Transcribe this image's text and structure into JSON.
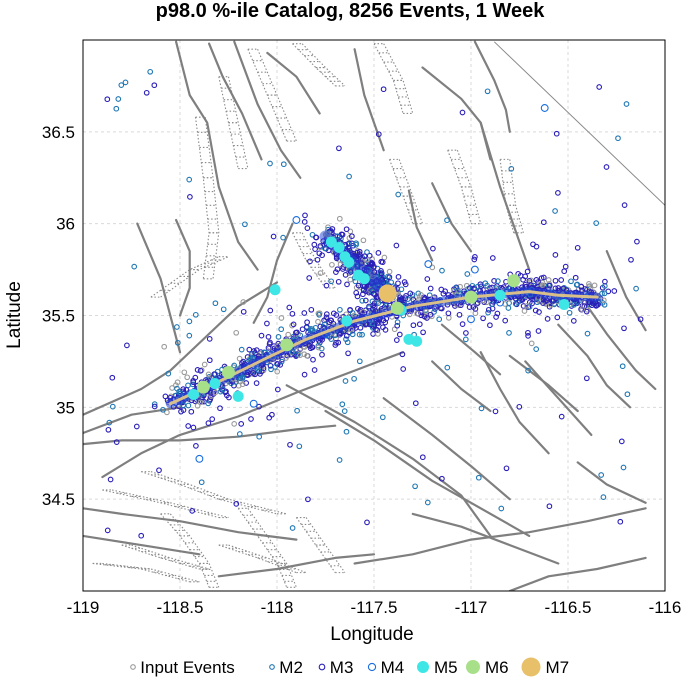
{
  "colors": {
    "input": "#9a9a9a",
    "m2": "#1f77b4",
    "m3": "#2a1fb8",
    "m4": "#1a6fe0",
    "m5": "#3ee6e6",
    "m6": "#a8e08a",
    "m7": "#e8c06a",
    "fault": "#7f7f7f"
  },
  "chart_data": {
    "type": "scatter",
    "title": "p98.0 %-ile Catalog, 8256 Events, 1 Week",
    "xlabel": "Longitude",
    "ylabel": "Latitude",
    "xlim": [
      -119,
      -116
    ],
    "ylim": [
      34,
      37
    ],
    "xticks": [
      -119,
      -118.5,
      -118,
      -117.5,
      -117,
      -116.5,
      -116
    ],
    "xtick_labels": [
      "-119",
      "-118.5",
      "-118",
      "-117.5",
      "-117",
      "-116.5",
      "-116"
    ],
    "yticks": [
      34.5,
      35,
      35.5,
      36,
      36.5
    ],
    "ytick_labels": [
      "34.5",
      "35",
      "35.5",
      "36",
      "36.5"
    ],
    "grid": true,
    "legend_position": "bottom",
    "legend": [
      {
        "label": "Input Events",
        "key": "input"
      },
      {
        "label": "M2",
        "key": "m2"
      },
      {
        "label": "M3",
        "key": "m3"
      },
      {
        "label": "M4",
        "key": "m4"
      },
      {
        "label": "M5",
        "key": "m5"
      },
      {
        "label": "M6",
        "key": "m6"
      },
      {
        "label": "M7",
        "key": "m7"
      }
    ],
    "trend_line": [
      [
        -118.55,
        35.02
      ],
      [
        -118.3,
        35.14
      ],
      [
        -118.05,
        35.27
      ],
      [
        -117.85,
        35.37
      ],
      [
        -117.6,
        35.47
      ],
      [
        -117.3,
        35.55
      ],
      [
        -117.0,
        35.6
      ],
      [
        -116.7,
        35.63
      ],
      [
        -116.55,
        35.61
      ],
      [
        -116.35,
        35.6
      ]
    ],
    "north_branch": [
      [
        -117.75,
        35.93
      ],
      [
        -117.62,
        35.8
      ],
      [
        -117.5,
        35.69
      ],
      [
        -117.42,
        35.61
      ]
    ],
    "m5_events": [
      [
        -117.72,
        35.9
      ],
      [
        -117.68,
        35.87
      ],
      [
        -117.65,
        35.82
      ],
      [
        -117.63,
        35.79
      ],
      [
        -117.58,
        35.72
      ],
      [
        -117.55,
        35.7
      ],
      [
        -118.01,
        35.64
      ],
      [
        -117.64,
        35.47
      ],
      [
        -117.36,
        35.53
      ],
      [
        -117.32,
        35.37
      ],
      [
        -117.28,
        35.36
      ],
      [
        -116.52,
        35.56
      ],
      [
        -116.85,
        35.61
      ],
      [
        -118.43,
        35.07
      ],
      [
        -118.2,
        35.06
      ],
      [
        -118.32,
        35.13
      ]
    ],
    "m6_events": [
      [
        -116.78,
        35.69
      ],
      [
        -117.0,
        35.6
      ],
      [
        -117.38,
        35.54
      ],
      [
        -117.95,
        35.34
      ],
      [
        -118.25,
        35.19
      ],
      [
        -118.38,
        35.11
      ]
    ],
    "m7_events": [
      [
        -117.43,
        35.62
      ]
    ],
    "m4_events": [
      [
        -117.9,
        36.02
      ],
      [
        -116.62,
        36.63
      ],
      [
        -117.22,
        35.78
      ],
      [
        -118.4,
        34.72
      ],
      [
        -116.85,
        35.57
      ],
      [
        -117.0,
        35.48
      ],
      [
        -118.12,
        35.02
      ],
      [
        -117.75,
        35.4
      ],
      [
        -116.98,
        35.75
      ]
    ]
  },
  "faults": {
    "main": [
      [
        [
          -118.52,
          36.99
        ],
        [
          -118.45,
          36.7
        ],
        [
          -118.36,
          36.55
        ],
        [
          -118.3,
          36.2
        ],
        [
          -118.2,
          35.9
        ],
        [
          -118.1,
          35.75
        ]
      ],
      [
        [
          -118.35,
          36.98
        ],
        [
          -118.28,
          36.8
        ],
        [
          -118.18,
          36.6
        ],
        [
          -118.08,
          36.35
        ]
      ],
      [
        [
          -118.22,
          36.99
        ],
        [
          -118.1,
          36.65
        ],
        [
          -117.98,
          36.4
        ],
        [
          -117.88,
          36.25
        ]
      ],
      [
        [
          -118.05,
          36.93
        ],
        [
          -117.9,
          36.8
        ],
        [
          -117.78,
          36.6
        ]
      ],
      [
        [
          -117.6,
          36.95
        ],
        [
          -117.55,
          36.7
        ],
        [
          -117.5,
          36.55
        ],
        [
          -117.45,
          36.4
        ]
      ],
      [
        [
          -117.25,
          36.85
        ],
        [
          -117.05,
          36.68
        ],
        [
          -116.95,
          36.55
        ],
        [
          -116.9,
          36.35
        ]
      ],
      [
        [
          -116.98,
          36.99
        ],
        [
          -116.88,
          36.78
        ],
        [
          -116.82,
          36.62
        ],
        [
          -116.8,
          36.5
        ]
      ],
      [
        [
          -116.95,
          36.55
        ],
        [
          -116.85,
          36.2
        ],
        [
          -116.75,
          35.9
        ],
        [
          -116.7,
          35.75
        ]
      ],
      [
        [
          -117.32,
          36.18
        ],
        [
          -117.28,
          35.98
        ],
        [
          -117.2,
          35.8
        ]
      ],
      [
        [
          -117.2,
          36.22
        ],
        [
          -117.1,
          36.0
        ],
        [
          -117.0,
          35.85
        ]
      ],
      [
        [
          -118.52,
          36.02
        ],
        [
          -118.45,
          35.85
        ],
        [
          -118.45,
          35.65
        ],
        [
          -118.5,
          35.5
        ]
      ],
      [
        [
          -118.72,
          36.0
        ],
        [
          -118.6,
          35.7
        ],
        [
          -118.55,
          35.5
        ],
        [
          -118.5,
          35.3
        ]
      ],
      [
        [
          -118.12,
          35.46
        ],
        [
          -118.05,
          35.6
        ],
        [
          -118.0,
          35.8
        ],
        [
          -117.92,
          36.0
        ]
      ],
      [
        [
          -119.0,
          34.96
        ],
        [
          -118.7,
          35.1
        ],
        [
          -118.55,
          35.2
        ],
        [
          -118.4,
          35.35
        ],
        [
          -118.2,
          35.55
        ],
        [
          -118.0,
          35.68
        ]
      ],
      [
        [
          -119.0,
          34.86
        ],
        [
          -118.75,
          34.96
        ],
        [
          -118.5,
          35.0
        ]
      ],
      [
        [
          -118.9,
          34.62
        ],
        [
          -118.7,
          34.75
        ],
        [
          -118.5,
          34.85
        ],
        [
          -118.2,
          34.95
        ],
        [
          -117.9,
          35.08
        ],
        [
          -117.6,
          35.2
        ],
        [
          -117.35,
          35.3
        ]
      ],
      [
        [
          -119.0,
          34.8
        ],
        [
          -118.8,
          34.82
        ],
        [
          -118.5,
          34.82
        ],
        [
          -118.2,
          34.84
        ],
        [
          -117.9,
          34.88
        ],
        [
          -117.7,
          34.9
        ]
      ],
      [
        [
          -117.75,
          34.98
        ],
        [
          -117.5,
          34.82
        ],
        [
          -117.2,
          34.6
        ],
        [
          -117.0,
          34.48
        ],
        [
          -116.7,
          34.3
        ]
      ],
      [
        [
          -117.95,
          35.12
        ],
        [
          -117.6,
          34.92
        ],
        [
          -117.3,
          34.72
        ],
        [
          -117.05,
          34.52
        ],
        [
          -116.9,
          34.3
        ]
      ],
      [
        [
          -117.45,
          35.05
        ],
        [
          -117.2,
          34.85
        ],
        [
          -117.0,
          34.68
        ],
        [
          -116.8,
          34.5
        ]
      ],
      [
        [
          -116.95,
          35.3
        ],
        [
          -116.85,
          35.1
        ],
        [
          -116.75,
          34.92
        ],
        [
          -116.6,
          34.75
        ]
      ],
      [
        [
          -116.8,
          35.28
        ],
        [
          -116.6,
          35.12
        ],
        [
          -116.45,
          34.98
        ]
      ],
      [
        [
          -116.55,
          35.45
        ],
        [
          -116.4,
          35.28
        ],
        [
          -116.3,
          35.12
        ],
        [
          -116.18,
          35.0
        ]
      ],
      [
        [
          -116.4,
          35.55
        ],
        [
          -116.3,
          35.4
        ],
        [
          -116.15,
          35.2
        ],
        [
          -116.05,
          35.1
        ]
      ],
      [
        [
          -116.72,
          35.25
        ],
        [
          -116.55,
          35.05
        ],
        [
          -116.38,
          34.85
        ]
      ],
      [
        [
          -116.3,
          35.85
        ],
        [
          -116.2,
          35.6
        ],
        [
          -116.1,
          35.42
        ]
      ],
      [
        [
          -116.45,
          34.7
        ],
        [
          -116.3,
          34.58
        ],
        [
          -116.1,
          34.48
        ]
      ],
      [
        [
          -117.6,
          34.15
        ],
        [
          -117.3,
          34.2
        ],
        [
          -117.0,
          34.28
        ],
        [
          -116.7,
          34.32
        ],
        [
          -116.4,
          34.38
        ],
        [
          -116.1,
          34.45
        ]
      ],
      [
        [
          -118.3,
          34.08
        ],
        [
          -118.0,
          34.12
        ],
        [
          -117.7,
          34.18
        ],
        [
          -117.5,
          34.2
        ]
      ],
      [
        [
          -119.0,
          34.45
        ],
        [
          -118.8,
          34.42
        ],
        [
          -118.5,
          34.38
        ],
        [
          -118.2,
          34.32
        ],
        [
          -117.9,
          34.28
        ]
      ],
      [
        [
          -119.0,
          34.3
        ],
        [
          -118.7,
          34.25
        ],
        [
          -118.4,
          34.2
        ]
      ],
      [
        [
          -117.3,
          34.42
        ],
        [
          -117.05,
          34.35
        ],
        [
          -116.8,
          34.25
        ],
        [
          -116.55,
          34.15
        ]
      ],
      [
        [
          -116.8,
          34.0
        ],
        [
          -116.6,
          34.08
        ],
        [
          -116.35,
          34.12
        ],
        [
          -116.1,
          34.18
        ]
      ],
      [
        [
          -117.2,
          35.25
        ],
        [
          -117.05,
          35.1
        ],
        [
          -116.9,
          34.98
        ]
      ],
      [
        [
          -117.15,
          35.45
        ],
        [
          -116.98,
          35.3
        ],
        [
          -116.85,
          35.18
        ]
      ]
    ],
    "thin": [
      [
        [
          -116.88,
          36.99
        ],
        [
          -116.0,
          36.1
        ]
      ]
    ],
    "dotted": [
      [
        [
          -118.42,
          36.58
        ],
        [
          -118.38,
          36.25
        ],
        [
          -118.35,
          35.95
        ],
        [
          -118.38,
          35.7
        ]
      ],
      [
        [
          -118.3,
          36.8
        ],
        [
          -118.25,
          36.55
        ],
        [
          -118.2,
          36.3
        ]
      ],
      [
        [
          -118.15,
          36.95
        ],
        [
          -118.05,
          36.7
        ],
        [
          -117.95,
          36.45
        ]
      ],
      [
        [
          -117.92,
          36.98
        ],
        [
          -117.8,
          36.85
        ],
        [
          -117.7,
          36.75
        ]
      ],
      [
        [
          -117.5,
          36.98
        ],
        [
          -117.4,
          36.78
        ],
        [
          -117.35,
          36.6
        ]
      ],
      [
        [
          -117.42,
          36.35
        ],
        [
          -117.35,
          36.15
        ],
        [
          -117.3,
          36.0
        ]
      ],
      [
        [
          -117.12,
          36.4
        ],
        [
          -117.05,
          36.2
        ],
        [
          -117.0,
          36.0
        ]
      ],
      [
        [
          -116.85,
          36.35
        ],
        [
          -116.82,
          36.1
        ],
        [
          -116.78,
          35.95
        ]
      ],
      [
        [
          -117.92,
          35.95
        ],
        [
          -117.85,
          35.8
        ],
        [
          -117.75,
          35.65
        ]
      ],
      [
        [
          -118.7,
          34.65
        ],
        [
          -118.5,
          34.58
        ],
        [
          -118.3,
          34.5
        ],
        [
          -118.0,
          34.42
        ]
      ],
      [
        [
          -118.9,
          34.55
        ],
        [
          -118.6,
          34.48
        ],
        [
          -118.3,
          34.4
        ]
      ],
      [
        [
          -118.8,
          34.25
        ],
        [
          -118.6,
          34.18
        ],
        [
          -118.4,
          34.12
        ]
      ],
      [
        [
          -118.3,
          34.25
        ],
        [
          -118.1,
          34.18
        ],
        [
          -117.9,
          34.1
        ]
      ],
      [
        [
          -118.6,
          34.42
        ],
        [
          -118.5,
          34.3
        ],
        [
          -118.4,
          34.15
        ],
        [
          -118.35,
          34.02
        ]
      ],
      [
        [
          -118.2,
          34.45
        ],
        [
          -118.1,
          34.3
        ],
        [
          -118.0,
          34.15
        ],
        [
          -117.95,
          34.02
        ]
      ],
      [
        [
          -117.9,
          34.4
        ],
        [
          -117.8,
          34.25
        ],
        [
          -117.7,
          34.1
        ]
      ],
      [
        [
          -118.95,
          34.15
        ],
        [
          -118.7,
          34.12
        ],
        [
          -118.45,
          34.05
        ]
      ],
      [
        [
          -118.65,
          35.6
        ],
        [
          -118.45,
          35.75
        ],
        [
          -118.3,
          35.82
        ]
      ]
    ]
  }
}
